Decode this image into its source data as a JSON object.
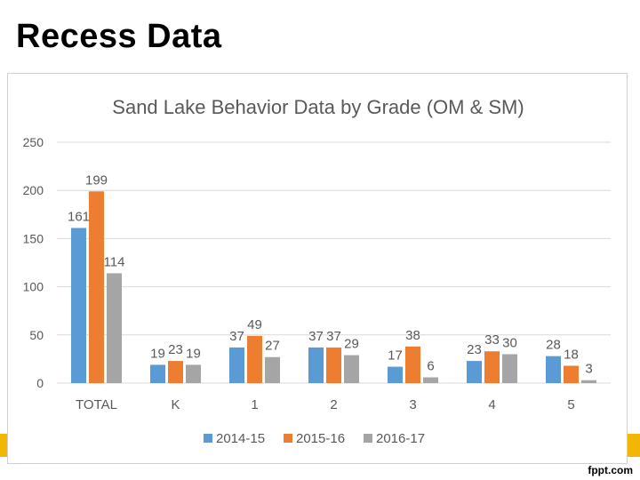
{
  "slide": {
    "title": "Recess Data",
    "footer": "fppt.com"
  },
  "colors": {
    "accent": "#f2b705"
  },
  "chart_data": {
    "type": "bar",
    "title": "Sand Lake Behavior Data by Grade (OM & SM)",
    "xlabel": "",
    "ylabel": "",
    "categories": [
      "TOTAL",
      "K",
      "1",
      "2",
      "3",
      "4",
      "5"
    ],
    "series": [
      {
        "name": "2014-15",
        "color": "#5b9bd5",
        "values": [
          161,
          19,
          37,
          37,
          17,
          23,
          28
        ]
      },
      {
        "name": "2015-16",
        "color": "#ed7d31",
        "values": [
          199,
          23,
          49,
          37,
          38,
          33,
          18
        ]
      },
      {
        "name": "2016-17",
        "color": "#a5a5a5",
        "values": [
          114,
          19,
          27,
          29,
          6,
          30,
          3
        ]
      }
    ],
    "ylim": [
      0,
      250
    ],
    "yticks": [
      0,
      50,
      100,
      150,
      200,
      250
    ],
    "grid": true,
    "legend": "bottom"
  }
}
